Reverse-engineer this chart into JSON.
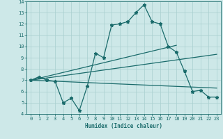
{
  "xlabel": "Humidex (Indice chaleur)",
  "bg_color": "#cde8e8",
  "grid_color": "#a8cfcf",
  "line_color": "#1a6b6b",
  "xlim": [
    -0.5,
    23.5
  ],
  "ylim": [
    4,
    14
  ],
  "xticks": [
    0,
    1,
    2,
    3,
    4,
    5,
    6,
    7,
    8,
    9,
    10,
    11,
    12,
    13,
    14,
    15,
    16,
    17,
    18,
    19,
    20,
    21,
    22,
    23
  ],
  "yticks": [
    4,
    5,
    6,
    7,
    8,
    9,
    10,
    11,
    12,
    13,
    14
  ],
  "line1_x": [
    0,
    1,
    2,
    3,
    4,
    5,
    6,
    7,
    8,
    9,
    10,
    11,
    12,
    13,
    14,
    15,
    16,
    17,
    18,
    19,
    20,
    21,
    22,
    23
  ],
  "line1_y": [
    7.0,
    7.3,
    7.0,
    6.9,
    5.0,
    5.4,
    4.3,
    6.5,
    9.4,
    9.0,
    11.9,
    12.0,
    12.2,
    13.0,
    13.7,
    12.2,
    12.0,
    10.0,
    9.5,
    7.8,
    6.0,
    6.1,
    5.5,
    5.5
  ],
  "line2_x": [
    0,
    18
  ],
  "line2_y": [
    7.0,
    10.1
  ],
  "line3_x": [
    0,
    23
  ],
  "line3_y": [
    7.0,
    9.3
  ],
  "line4_x": [
    0,
    23
  ],
  "line4_y": [
    7.0,
    6.3
  ],
  "linewidth": 0.9,
  "markersize": 3.5
}
